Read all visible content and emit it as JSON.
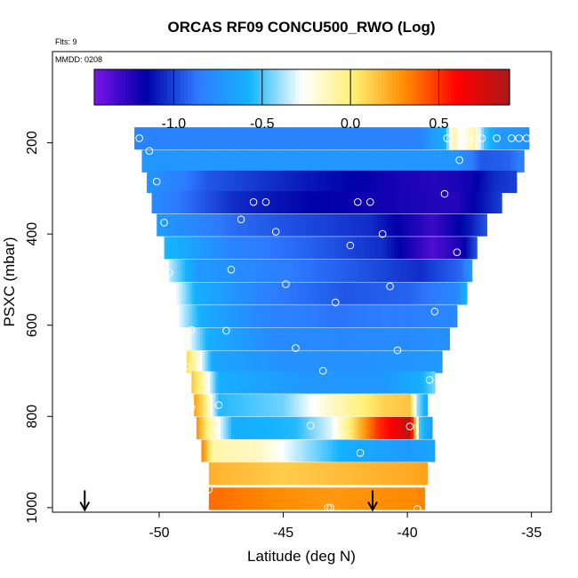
{
  "chart_data": {
    "type": "heatmap",
    "title": "ORCAS RF09 CONCU500_RWO (Log)",
    "flights_note": "Flts: 9",
    "date_note": "MMDD: 0208",
    "xlabel": "Latitude (deg N)",
    "ylabel": "PSXC (mbar)",
    "xlim": [
      -54.3,
      -34.2
    ],
    "ylim": [
      1010,
      0
    ],
    "xticks": [
      -50,
      -45,
      -40,
      -35
    ],
    "yticks": [
      200,
      400,
      600,
      800,
      1000
    ],
    "colorbar": {
      "range": [
        -1.45,
        0.9
      ],
      "ticks": [
        -1.0,
        -0.5,
        0.0,
        0.5
      ],
      "tick_labels": [
        "-1.0",
        "-0.5",
        "0.0",
        "0.5"
      ],
      "colors": [
        "#7a14e8",
        "#0000a8",
        "#2e7bff",
        "#14b4ff",
        "#ffffff",
        "#ffef73",
        "#ff8a00",
        "#ff0000",
        "#a81a1a"
      ]
    },
    "rows": [
      {
        "p": 190,
        "lat_min": -51.0,
        "lat_max": -35.1,
        "values": [
          [
            -51.0,
            -0.82
          ],
          [
            -39.5,
            -0.82
          ],
          [
            -38.5,
            -0.6
          ],
          [
            -38.1,
            -0.05
          ],
          [
            -37.9,
            -0.3
          ],
          [
            -37.3,
            -0.1
          ],
          [
            -36.9,
            -0.5
          ],
          [
            -36.3,
            -0.7
          ],
          [
            -35.1,
            -0.75
          ]
        ]
      },
      {
        "p": 240,
        "lat_min": -50.7,
        "lat_max": -35.3,
        "values": [
          [
            -50.7,
            -0.72
          ],
          [
            -42.0,
            -0.72
          ],
          [
            -38.0,
            -0.72
          ],
          [
            -37.0,
            -0.95
          ],
          [
            -35.9,
            -0.92
          ],
          [
            -35.3,
            -0.82
          ]
        ]
      },
      {
        "p": 285,
        "lat_min": -50.5,
        "lat_max": -35.6,
        "values": [
          [
            -50.5,
            -0.72
          ],
          [
            -48.0,
            -0.95
          ],
          [
            -44.0,
            -1.1
          ],
          [
            -39.0,
            -1.25
          ],
          [
            -37.5,
            -1.2
          ],
          [
            -36.5,
            -1.05
          ],
          [
            -35.6,
            -1.0
          ]
        ]
      },
      {
        "p": 330,
        "lat_min": -50.3,
        "lat_max": -36.2,
        "values": [
          [
            -50.3,
            -0.78
          ],
          [
            -47.0,
            -1.05
          ],
          [
            -44.0,
            -1.15
          ],
          [
            -41.0,
            -1.2
          ],
          [
            -38.0,
            -1.25
          ],
          [
            -36.2,
            -1.0
          ]
        ]
      },
      {
        "p": 380,
        "lat_min": -50.1,
        "lat_max": -36.8,
        "values": [
          [
            -50.1,
            -0.7
          ],
          [
            -47.0,
            -0.9
          ],
          [
            -44.5,
            -0.97
          ],
          [
            -41.5,
            -1.05
          ],
          [
            -39.0,
            -1.3
          ],
          [
            -37.5,
            -1.1
          ],
          [
            -36.8,
            -0.95
          ]
        ]
      },
      {
        "p": 430,
        "lat_min": -49.8,
        "lat_max": -37.2,
        "values": [
          [
            -49.8,
            -0.55
          ],
          [
            -47.0,
            -0.82
          ],
          [
            -44.0,
            -0.92
          ],
          [
            -41.0,
            -1.05
          ],
          [
            -39.0,
            -1.35
          ],
          [
            -37.8,
            -1.2
          ],
          [
            -37.2,
            -0.95
          ]
        ]
      },
      {
        "p": 480,
        "lat_min": -49.6,
        "lat_max": -37.4,
        "values": [
          [
            -49.6,
            -0.35
          ],
          [
            -48.5,
            -0.7
          ],
          [
            -45.0,
            -0.85
          ],
          [
            -42.0,
            -0.95
          ],
          [
            -39.5,
            -1.05
          ],
          [
            -37.8,
            -0.9
          ],
          [
            -37.4,
            -0.7
          ]
        ]
      },
      {
        "p": 530,
        "lat_min": -49.4,
        "lat_max": -37.6,
        "values": [
          [
            -49.4,
            -0.25
          ],
          [
            -48.5,
            -0.6
          ],
          [
            -45.5,
            -0.85
          ],
          [
            -42.5,
            -0.95
          ],
          [
            -40.0,
            -0.92
          ],
          [
            -38.0,
            -0.8
          ],
          [
            -37.6,
            -0.55
          ]
        ]
      },
      {
        "p": 580,
        "lat_min": -49.2,
        "lat_max": -38.0,
        "values": [
          [
            -49.2,
            -0.3
          ],
          [
            -48.3,
            -0.6
          ],
          [
            -46.0,
            -0.8
          ],
          [
            -43.0,
            -0.88
          ],
          [
            -40.0,
            -0.85
          ],
          [
            -38.0,
            -0.8
          ]
        ]
      },
      {
        "p": 630,
        "lat_min": -49.0,
        "lat_max": -38.3,
        "values": [
          [
            -49.0,
            -0.2
          ],
          [
            -48.0,
            -0.6
          ],
          [
            -45.5,
            -0.78
          ],
          [
            -42.5,
            -0.8
          ],
          [
            -40.0,
            -0.78
          ],
          [
            -38.3,
            -0.75
          ]
        ]
      },
      {
        "p": 680,
        "lat_min": -48.9,
        "lat_max": -38.6,
        "values": [
          [
            -48.9,
            0.1
          ],
          [
            -48.5,
            -0.15
          ],
          [
            -47.8,
            -0.65
          ],
          [
            -45.0,
            -0.75
          ],
          [
            -42.0,
            -0.75
          ],
          [
            -39.5,
            -0.72
          ],
          [
            -38.6,
            -0.7
          ]
        ]
      },
      {
        "p": 725,
        "lat_min": -48.7,
        "lat_max": -38.9,
        "values": [
          [
            -48.7,
            0.15
          ],
          [
            -48.3,
            -0.05
          ],
          [
            -47.6,
            -0.6
          ],
          [
            -44.0,
            -0.72
          ],
          [
            -41.0,
            -0.72
          ],
          [
            -39.5,
            -0.6
          ],
          [
            -38.9,
            -0.45
          ]
        ]
      },
      {
        "p": 775,
        "lat_min": -48.6,
        "lat_max": -39.2,
        "values": [
          [
            -48.6,
            0.25
          ],
          [
            -48.2,
            0.05
          ],
          [
            -47.6,
            -0.55
          ],
          [
            -45.0,
            -0.45
          ],
          [
            -43.0,
            -0.15
          ],
          [
            -41.0,
            0.1
          ],
          [
            -39.9,
            0.15
          ],
          [
            -39.6,
            -0.4
          ],
          [
            -39.2,
            -0.65
          ]
        ]
      },
      {
        "p": 825,
        "lat_min": -48.5,
        "lat_max": -39.0,
        "values": [
          [
            -48.5,
            0.3
          ],
          [
            -48.0,
            -0.05
          ],
          [
            -47.0,
            -0.6
          ],
          [
            -44.5,
            -0.55
          ],
          [
            -43.0,
            -0.3
          ],
          [
            -42.0,
            0.15
          ],
          [
            -41.2,
            0.5
          ],
          [
            -40.5,
            0.65
          ],
          [
            -39.9,
            0.85
          ],
          [
            -39.5,
            -0.5
          ],
          [
            -39.0,
            -0.7
          ]
        ]
      },
      {
        "p": 875,
        "lat_min": -48.3,
        "lat_max": -38.9,
        "values": [
          [
            -48.3,
            0.35
          ],
          [
            -47.8,
            -0.1
          ],
          [
            -46.0,
            -0.15
          ],
          [
            -44.5,
            -0.35
          ],
          [
            -42.5,
            -0.6
          ],
          [
            -40.0,
            -0.7
          ],
          [
            -38.9,
            -0.65
          ]
        ]
      },
      {
        "p": 925,
        "lat_min": -48.0,
        "lat_max": -39.2,
        "values": [
          [
            -48.0,
            0.2
          ],
          [
            -45.0,
            0.12
          ],
          [
            -42.0,
            0.18
          ],
          [
            -40.0,
            0.22
          ],
          [
            -39.2,
            0.25
          ]
        ]
      },
      {
        "p": 980,
        "lat_min": -48.0,
        "lat_max": -39.3,
        "values": [
          [
            -48.0,
            0.38
          ],
          [
            -45.0,
            0.3
          ],
          [
            -43.0,
            0.27
          ],
          [
            -41.0,
            0.3
          ],
          [
            -39.3,
            0.32
          ]
        ]
      }
    ],
    "row_half_height": 24,
    "points": [
      [
        -50.8,
        190
      ],
      [
        -50.4,
        218
      ],
      [
        -50.1,
        285
      ],
      [
        -49.8,
        375
      ],
      [
        -49.6,
        485
      ],
      [
        -48.7,
        610
      ],
      [
        -48.9,
        690
      ],
      [
        -48.7,
        780
      ],
      [
        -48.5,
        960
      ],
      [
        -48.4,
        980
      ],
      [
        -48.3,
        990
      ],
      [
        -48.0,
        960
      ],
      [
        -47.6,
        775
      ],
      [
        -47.3,
        612
      ],
      [
        -47.1,
        478
      ],
      [
        -46.7,
        368
      ],
      [
        -46.2,
        330
      ],
      [
        -45.7,
        330
      ],
      [
        -45.3,
        395
      ],
      [
        -44.9,
        510
      ],
      [
        -44.5,
        650
      ],
      [
        -43.9,
        820
      ],
      [
        -43.4,
        700
      ],
      [
        -43.2,
        1000
      ],
      [
        -43.1,
        1000
      ],
      [
        -42.9,
        550
      ],
      [
        -42.3,
        425
      ],
      [
        -41.9,
        880
      ],
      [
        -42.0,
        330
      ],
      [
        -41.5,
        330
      ],
      [
        -41.0,
        400
      ],
      [
        -40.7,
        515
      ],
      [
        -40.4,
        655
      ],
      [
        -39.9,
        822
      ],
      [
        -39.6,
        1003
      ],
      [
        -39.1,
        720
      ],
      [
        -38.9,
        570
      ],
      [
        -38.9,
        910
      ],
      [
        -38.5,
        312
      ],
      [
        -38.0,
        440
      ],
      [
        -37.9,
        238
      ],
      [
        -38.4,
        190
      ],
      [
        -37.7,
        190
      ],
      [
        -37.3,
        190
      ],
      [
        -37.0,
        190
      ],
      [
        -36.4,
        190
      ],
      [
        -35.8,
        190
      ],
      [
        -35.5,
        190
      ],
      [
        -35.2,
        190
      ]
    ],
    "arrows": [
      {
        "lat": -53.0,
        "p": 1005
      },
      {
        "lat": -41.4,
        "p": 1005
      }
    ]
  }
}
